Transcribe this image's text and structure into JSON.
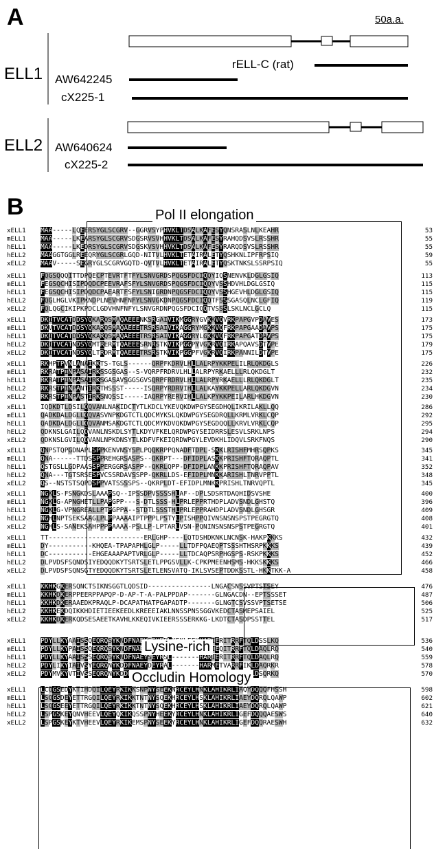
{
  "panel_a": {
    "letter": "A",
    "scale_label": "50a.a.",
    "genes": [
      {
        "name": "ELL1",
        "clones": [
          "rELL-C (rat)",
          "AW642245",
          "cX225-1"
        ]
      },
      {
        "name": "ELL2",
        "clones": [
          "AW640624",
          "cX225-2"
        ]
      }
    ]
  },
  "panel_b": {
    "letter": "B",
    "region_labels": [
      "Pol II elongation",
      "Lysine-rich",
      "Occludin Homology"
    ],
    "blocks": [
      {
        "rows": [
          {
            "name": "xELL1",
            "seq": "MAA-----LQEERSYGLSCGRV--GGRVSYPHVKLTDSALKAFESYQNSRASLNLKEAHR",
            "num": "53"
          },
          {
            "name": "mELL1",
            "seq": "MAA-----LKEARSYGLSCGRVSDGSRVSVHHVKLTDSALKAFESYRAHQDSVSLRSSHR",
            "num": "55"
          },
          {
            "name": "hELL1",
            "seq": "MAA-----LKEDRSYGLSCGRVSDGSKVSVHHVKLTDSALKAFESYRARQDSVSLRSSHR",
            "num": "55"
          },
          {
            "name": "hELL2",
            "seq": "MAAGGTGGLREEQRYGLSCGRLGQD-NITVLHVKLTETAIRALETYQSHKNLIPFRPSIQ",
            "num": "59"
          },
          {
            "name": "xELL2",
            "seq": "MAAV-----SEGRYGLSCGRVGQTD-QVTVLHVKLTETAIRALETYQSKTNKSLSSRPSIQ",
            "num": "55"
          }
        ]
      },
      {
        "rows": [
          {
            "name": "xELL1",
            "seq": "FQGSQQQITTDPQECPTEVRTFTFYLSNVGRDSPQGSFDCIQQYIQSNENVKLDGLGSIQ",
            "num": "113"
          },
          {
            "name": "mELL1",
            "seq": "FEGSQCHISIPDQDCPEEVRAFSFYLSNVGRDSPQGSFDCIQQYVSSHDVHLDGLGSIQ",
            "num": "115"
          },
          {
            "name": "hELL1",
            "seq": "FEGSQCHISIPDQDCPAEARTFSFYLSNIGRDNPQGSFDCIQQYVSSHGEVHLDGLGSIQ",
            "num": "115"
          },
          {
            "name": "hELL2",
            "seq": "FQGLHGLVKIPKNDPLNEVHNFNFYLSNVGKDNPQGSFDCIQQTFSSSGASQLNCLGFIQ",
            "num": "119"
          },
          {
            "name": "xELL2",
            "seq": "FQLQGCIKIPKPDCLGDVHNFNFYLSNVGRDNPQGSFDCIQQTVSSSLSKLNCLGCLQ",
            "num": "115"
          }
        ]
      },
      {
        "rows": [
          {
            "name": "xELL1",
            "seq": "DKITVCATDDSYQKARQSMAQAEEENKSRGAIVIKMGGRYGVKKVQVRKPAPGVPDAVES",
            "num": "173"
          },
          {
            "name": "mELL1",
            "seq": "DKVTVCATDDSYQKARQSMAQAEEETRSRSAIVIKAGGRYMGKKVQFRKPAPGAADAVPS",
            "num": "175"
          },
          {
            "name": "hELL1",
            "seq": "DKITVCATDDSYQKARQSMAQAEEETRSRSAIVIKAGGRYLGKKVQFRKPAPGATDAVPS",
            "num": "175"
          },
          {
            "name": "hELL2",
            "seq": "DKITVCATNDSYQMTRERMTQAEEESRNRSTKVIKPGGPYVGKRVQIRKAPQAVSDTVPE",
            "num": "179"
          },
          {
            "name": "xELL2",
            "seq": "DKITVCATNDSYQLTRDRMTQAEEETRSRSTKVIKPGGPFVGKRVQIRKPANNILDTVPE",
            "num": "175"
          }
        ]
      },
      {
        "rows": [
          {
            "name": "xELL1",
            "seq": "RKHPTPVNLANAIKKTS-TGLS------QRPFKDRVLHLLALRPYKKPELILRLQKDGLS",
            "num": "226"
          },
          {
            "name": "mELL1",
            "seq": "RKRATPINPASAIRKSSGSGAS--S-VQRPFRDRVLHLLALRPYRKAELLLRLQKDGLT",
            "num": "232"
          },
          {
            "name": "hELL1",
            "seq": "RKRATPINPASAIRKSGASAVSGGSGVSQRPFRDRVLHLLALRPYRKAELLLRLQKDGLT",
            "num": "235"
          },
          {
            "name": "hELL2",
            "seq": "RKRSTPINPANTIRKTHSSST-----ISQRPYRDRVIHLLALKAYKKPELLARLQKDGVN",
            "num": "234"
          },
          {
            "name": "xELL2",
            "seq": "RKRSTPINPASTIRKSNQSSI-----IAQRPYRERVIHLLALKPYKKPEILARLHKDGVN",
            "num": "230"
          }
        ]
      },
      {
        "rows": [
          {
            "name": "xELL1",
            "seq": "IQDKDTLDSILQQVANLNAKIDCTYTLKDCLYKEVQKDWPGYSEGDHQLIKRILAKLLQQ",
            "num": "286"
          },
          {
            "name": "mELL1",
            "seq": "QADKDALDGLLQQVASVNPKDGTCTLQDCMYKSLQKDWPGYSEGDRQLLKRMLVRKLCQP",
            "num": "292"
          },
          {
            "name": "hELL1",
            "seq": "QADKDALDGLLQQVANMSAKDGTCTLQDCMYKDVQKDWPGYSEGDQQLLKRVLVRKLCQP",
            "num": "295"
          },
          {
            "name": "hELL2",
            "seq": "QDKNSLGAILQQVANLNSKDLSYTLKDYVFKELQRDWPGYSEIDRRSLESVLSRKLNPS",
            "num": "294"
          },
          {
            "name": "xELL2",
            "seq": "QDKNSLGVILQQVANLNPKDNSYTLKDFVFKEIQRDWPGYLEVDKHLIDQVLSRKFNQS",
            "num": "290"
          }
        ]
      },
      {
        "rows": [
          {
            "name": "xELL1",
            "seq": "QNPSTQPGDNAPLSPPKENVNSYSPLPQQKRPPQNADFTDPL-SKKLRISHFMHRSQPKS",
            "num": "345"
          },
          {
            "name": "mELL1",
            "seq": "QNA------TTDSSPPREHGRSASPS--QKRPT---DFIDPLASKKPRISHFTQRAQPTL",
            "num": "341"
          },
          {
            "name": "hELL1",
            "seq": "QSTGSLLGDPAASSPPERGGRSASPP--QKRLQPP-DFIDPLANKKPRISHFTQRAQPAV",
            "num": "352"
          },
          {
            "name": "hELL2",
            "seq": "QNA---TGTSRSESPVCSSRDAVSSPP-QKRLLDS-EFIDPLMNKKARISHLTNRVPPTL",
            "num": "348"
          },
          {
            "name": "xELL2",
            "seq": "QS--NSTSTSQPDSPPVATSSSSPS--QKRPLDT-EFIDPLMNKKPRISHLTNRVQPTL",
            "num": "345"
          }
        ]
      },
      {
        "rows": [
          {
            "name": "xELL1",
            "seq": "NGKLS-FSNGKDSLAAAPSQ--IPSSDPVSSSSHLAF--DPLSDSRTDAQHIDSVSHE",
            "num": "400"
          },
          {
            "name": "mELL1",
            "seq": "NGKLG-APNGHETLLPAPGPP---S-DTLSSS-HLPRLEPPRTHDPLADVSNDLGHSTQ",
            "num": "396"
          },
          {
            "name": "hELL1",
            "seq": "NGKLG-VPNGREALLPTPGPPA--STDTLSSSTHLPRLEPPRAHDPLADVSNDLGHSGR",
            "num": "409"
          },
          {
            "name": "hELL2",
            "seq": "NGHLNPTSEKSAAGLPLPPAAAAIPTPPPLPSTYLPISHPPQIVNSNSNSPSTPEGRGTQ",
            "num": "408"
          },
          {
            "name": "xELL2",
            "seq": "NGHLS-SANEKSAHPPPPAAAA-PSLLP-LPTARLVSN-PQNINSNSNSPSTPEGRGTQ",
            "num": "401"
          }
        ]
      },
      {
        "rows": [
          {
            "name": "xELL1",
            "seq": "TT------------------------ERLGHP----LQTDSHDKNKLNCNSK-HAKPKKKS",
            "num": "432"
          },
          {
            "name": "mELL1",
            "seq": "DY-----------KHQEA-TPAPAPHLGLP-----LLTDFPQAEQPTSSSHTHSRPKKKS",
            "num": "439"
          },
          {
            "name": "hELL1",
            "seq": "DC-----------EHGEAAAPAPTVRLGLP-----LLTDCAQPSRPHGSPS-RSKPKKKS",
            "num": "452"
          },
          {
            "name": "hELL2",
            "seq": "DLPVDSFSQNDSIYEDQQDKYTSRTSLETLPPGSVLLK-CPKPMEENHSMS-HKKSKKKS",
            "num": "466"
          },
          {
            "name": "xELL2",
            "seq": "DLPVDSFSQNSGTYEDQQDKYTSRTSLETLENSVATQ-IKLSVSEPTDDKSSTL-HKKTKK-A",
            "num": "458"
          }
        ]
      },
      {
        "rows": [
          {
            "name": "xELL1",
            "seq": "KKHKGKERSQNCTSIKNSGGTLQDSID----------------LNGACSNSSVPTSTSEY",
            "num": "476"
          },
          {
            "name": "mELL1",
            "seq": "KKHKDKERPPEERPPAPQP-D-AP-T-A-PALPPDAP-------GLNGACDN--EPTSSSET",
            "num": "487"
          },
          {
            "name": "hELL1",
            "seq": "KKHKDKERAAEDKPRAQLP-DCAPATHATPGAPADTP-------GLNGTCSVSSVPTSETSE",
            "num": "506"
          },
          {
            "name": "hELL2",
            "seq": "KKHKEKDQIKKHDIETIEEKEEDLKREEEIAKLNNSSPNSSGGVKEDCTASMEPSAIEL",
            "num": "525"
          },
          {
            "name": "xELL2",
            "seq": "KKHKDKERKQDSESAEETKAVHLKKEQIVKIEERSSSERKKG-LKDTCTASDPSSTTEL",
            "num": "517"
          }
        ]
      },
      {
        "rows": [
          {
            "name": "xELL1",
            "seq": "PDYLLKYAAISSQEQRQSYKNDFNAEYSEYRDLKEKLEEKHARIERITRRFTQLDSSLKQ",
            "num": "536"
          },
          {
            "name": "mELL1",
            "seq": "PDYLLKYPAISSQEQRQSYKNDFNAEYSEYRSL-------HARIEQITRRFTQLDAQLRQ",
            "num": "540"
          },
          {
            "name": "hELL1",
            "seq": "PDYLLKYAAISSSEQRQSYKNDFNAEYSEYRSL-------HARIERITRRFTQLDAQLRQ",
            "num": "559"
          },
          {
            "name": "hELL2",
            "seq": "PDYLIKYIAIVSYEQRQNYKDDFNAEYDEYRAL-------HARMETVARRFIKLDAQRKR",
            "num": "578"
          },
          {
            "name": "xELL2",
            "seq": "PDYMVKYVTIVSSEQRQNYKDDFNAEYDEYRAL-------HARVENVTRKFMQLDSQRKQ",
            "num": "570"
          }
        ]
      },
      {
        "rows": [
          {
            "name": "xELL1",
            "seq": "LCQGSEDYKTIHDQILQEYRKIKKSNPNYSEEKNRCEYLHNKLAHIKRLIAQYDQQQFHSSH",
            "num": "598"
          },
          {
            "name": "mELL1",
            "seq": "LSQGSDEYETTRGQILQEYRKIKKTNTNYSQEKHRCEYLHSKLAHIKRLIAEYDQRQLQAWP",
            "num": "602"
          },
          {
            "name": "hELL1",
            "seq": "LSQGSEEYETTRGQILQEYRKIKKTNTNYSQEKHRCEYLHSKLAHIKRLIAEYDQRQLQAWP",
            "num": "621"
          },
          {
            "name": "hELL2",
            "seq": "LSPGSKEYQNVHEEVLQEYQKIKQSSPNYHEEKYRCEYLHNKLAHIKRLIGEFDQQQAESWS",
            "num": "640"
          },
          {
            "name": "xELL2",
            "seq": "LSPGSKEYKTVHEEVLQEYRKIKEMSPNYSEEKYRCEYLHNKLAHIKRLIGEFDQQRAESWH",
            "num": "632"
          }
        ]
      }
    ]
  }
}
